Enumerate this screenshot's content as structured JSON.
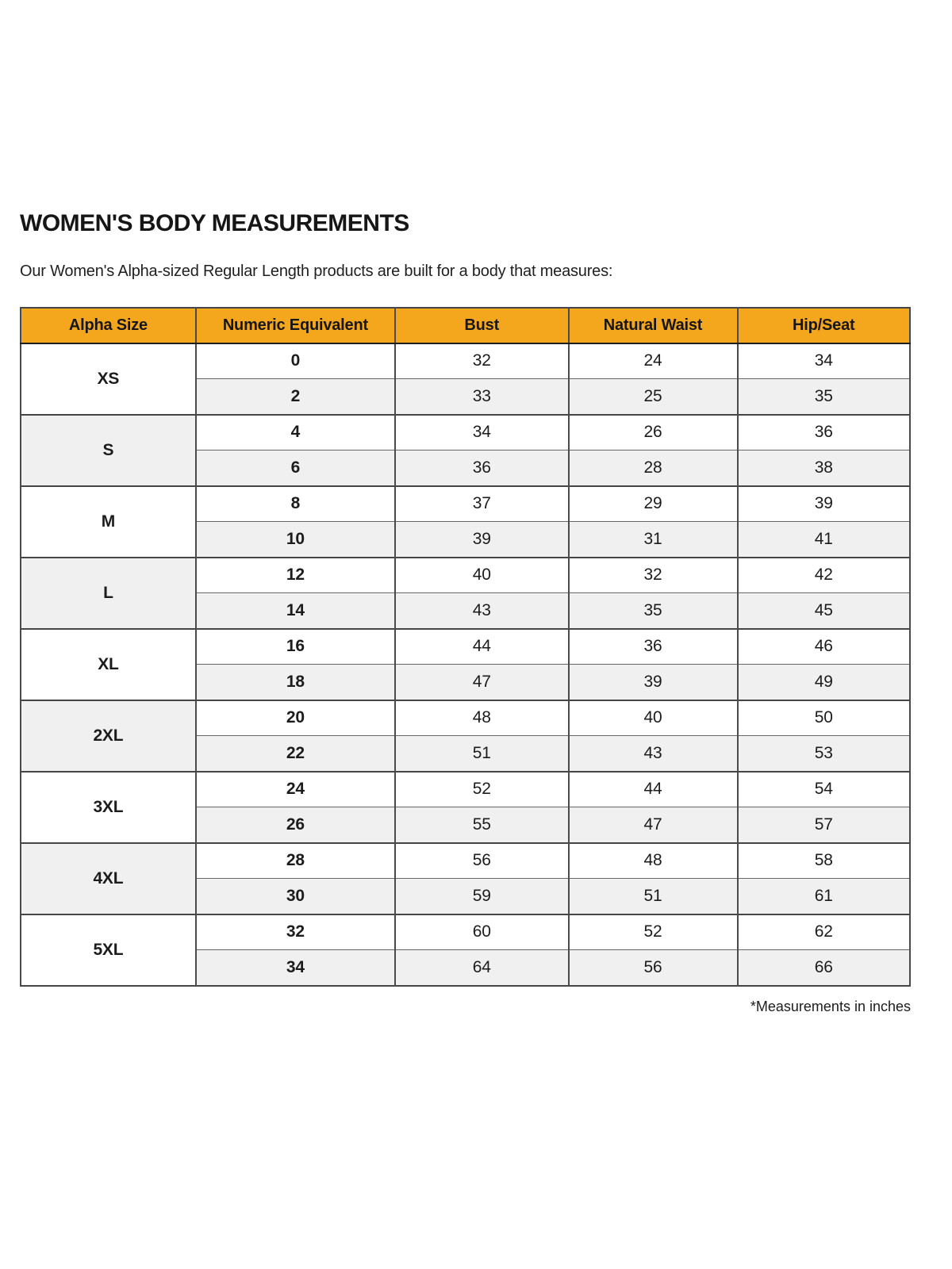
{
  "page": {
    "title": "WOMEN'S BODY MEASUREMENTS",
    "subtitle": "Our Women's Alpha-sized Regular Length products are built for a body that measures:",
    "footnote": "*Measurements in inches"
  },
  "colors": {
    "header_bg": "#f4a71d",
    "row_alt_bg": "#f0f0f0",
    "border_dark": "#454545",
    "text": "#1c1c1c"
  },
  "table": {
    "columns": [
      "Alpha Size",
      "Numeric Equivalent",
      "Bust",
      "Natural Waist",
      "Hip/Seat"
    ],
    "units": "inches",
    "groups": [
      {
        "alpha": "XS",
        "shaded": false,
        "rows": [
          {
            "numeric": "0",
            "bust": "32",
            "waist": "24",
            "hip": "34"
          },
          {
            "numeric": "2",
            "bust": "33",
            "waist": "25",
            "hip": "35"
          }
        ]
      },
      {
        "alpha": "S",
        "shaded": true,
        "rows": [
          {
            "numeric": "4",
            "bust": "34",
            "waist": "26",
            "hip": "36"
          },
          {
            "numeric": "6",
            "bust": "36",
            "waist": "28",
            "hip": "38"
          }
        ]
      },
      {
        "alpha": "M",
        "shaded": false,
        "rows": [
          {
            "numeric": "8",
            "bust": "37",
            "waist": "29",
            "hip": "39"
          },
          {
            "numeric": "10",
            "bust": "39",
            "waist": "31",
            "hip": "41"
          }
        ]
      },
      {
        "alpha": "L",
        "shaded": true,
        "rows": [
          {
            "numeric": "12",
            "bust": "40",
            "waist": "32",
            "hip": "42"
          },
          {
            "numeric": "14",
            "bust": "43",
            "waist": "35",
            "hip": "45"
          }
        ]
      },
      {
        "alpha": "XL",
        "shaded": false,
        "rows": [
          {
            "numeric": "16",
            "bust": "44",
            "waist": "36",
            "hip": "46"
          },
          {
            "numeric": "18",
            "bust": "47",
            "waist": "39",
            "hip": "49"
          }
        ]
      },
      {
        "alpha": "2XL",
        "shaded": true,
        "rows": [
          {
            "numeric": "20",
            "bust": "48",
            "waist": "40",
            "hip": "50"
          },
          {
            "numeric": "22",
            "bust": "51",
            "waist": "43",
            "hip": "53"
          }
        ]
      },
      {
        "alpha": "3XL",
        "shaded": false,
        "rows": [
          {
            "numeric": "24",
            "bust": "52",
            "waist": "44",
            "hip": "54"
          },
          {
            "numeric": "26",
            "bust": "55",
            "waist": "47",
            "hip": "57"
          }
        ]
      },
      {
        "alpha": "4XL",
        "shaded": true,
        "rows": [
          {
            "numeric": "28",
            "bust": "56",
            "waist": "48",
            "hip": "58"
          },
          {
            "numeric": "30",
            "bust": "59",
            "waist": "51",
            "hip": "61"
          }
        ]
      },
      {
        "alpha": "5XL",
        "shaded": false,
        "rows": [
          {
            "numeric": "32",
            "bust": "60",
            "waist": "52",
            "hip": "62"
          },
          {
            "numeric": "34",
            "bust": "64",
            "waist": "56",
            "hip": "66"
          }
        ]
      }
    ]
  }
}
